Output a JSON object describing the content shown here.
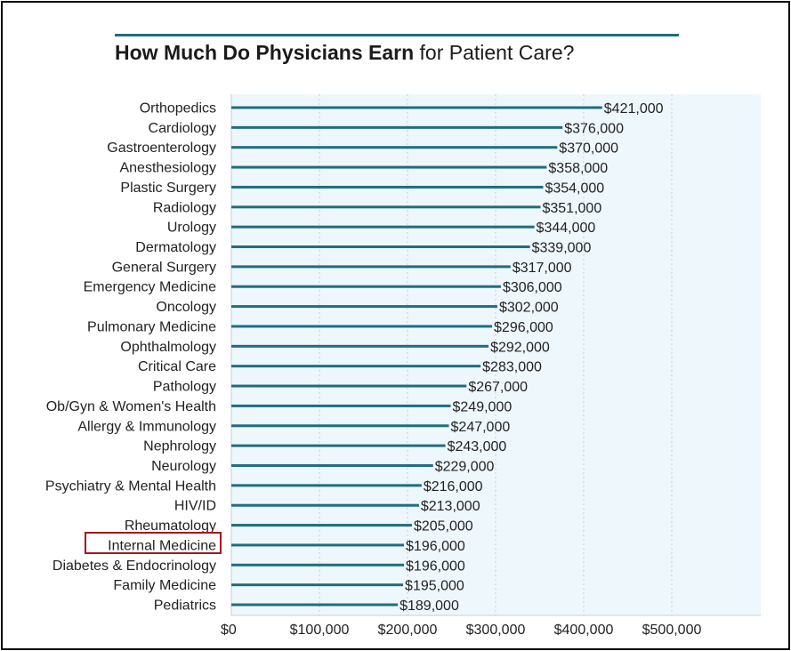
{
  "title": {
    "bold": "How Much Do Physicians Earn",
    "light": "for Patient Care?"
  },
  "colors": {
    "bar": "#1f6d80",
    "plot_background": "#eef7fc",
    "title_rule": "#1f6d80",
    "highlight_box": "#a3191c"
  },
  "highlight": {
    "category": "Internal Medicine"
  },
  "chart_data": {
    "type": "bar",
    "orientation": "horizontal",
    "title": "How Much Do Physicians Earn for Patient Care?",
    "xlabel": "",
    "ylabel": "",
    "xlim": [
      0,
      600000
    ],
    "grid": "vertical dotted",
    "x_ticks": [
      "$0",
      "$100,000",
      "$200,000",
      "$300,000",
      "$400,000",
      "$500,000"
    ],
    "x_tick_values": [
      0,
      100000,
      200000,
      300000,
      400000,
      500000
    ],
    "categories": [
      "Orthopedics",
      "Cardiology",
      "Gastroenterology",
      "Anesthesiology",
      "Plastic Surgery",
      "Radiology",
      "Urology",
      "Dermatology",
      "General Surgery",
      "Emergency Medicine",
      "Oncology",
      "Pulmonary Medicine",
      "Ophthalmology",
      "Critical Care",
      "Pathology",
      "Ob/Gyn & Women's Health",
      "Allergy & Immunology",
      "Nephrology",
      "Neurology",
      "Psychiatry & Mental Health",
      "HIV/ID",
      "Rheumatology",
      "Internal Medicine",
      "Diabetes & Endocrinology",
      "Family Medicine",
      "Pediatrics"
    ],
    "values": [
      421000,
      376000,
      370000,
      358000,
      354000,
      351000,
      344000,
      339000,
      317000,
      306000,
      302000,
      296000,
      292000,
      283000,
      267000,
      249000,
      247000,
      243000,
      229000,
      216000,
      213000,
      205000,
      196000,
      196000,
      195000,
      189000
    ],
    "value_labels": [
      "$421,000",
      "$376,000",
      "$370,000",
      "$358,000",
      "$354,000",
      "$351,000",
      "$344,000",
      "$339,000",
      "$317,000",
      "$306,000",
      "$302,000",
      "$296,000",
      "$292,000",
      "$283,000",
      "$267,000",
      "$249,000",
      "$247,000",
      "$243,000",
      "$229,000",
      "$216,000",
      "$213,000",
      "$205,000",
      "$196,000",
      "$196,000",
      "$195,000",
      "$189,000"
    ]
  }
}
